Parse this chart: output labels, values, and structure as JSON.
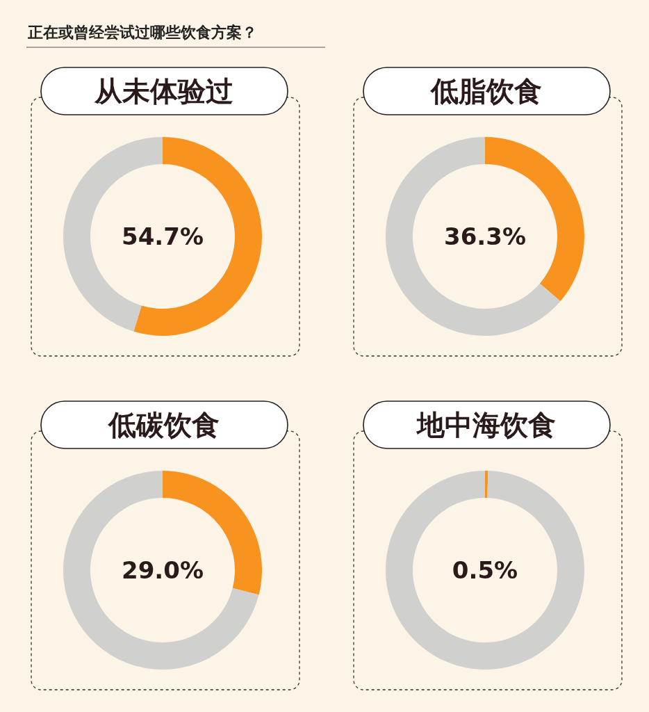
{
  "chart_data": [
    {
      "type": "donut",
      "title": "从未体验过",
      "subtitle": "正在或曾经尝试过哪些饮食方案？",
      "categories": [
        null,
        null
      ],
      "values": [
        54.7,
        45.3
      ],
      "colors": [
        "#f7931e",
        "#d0d0ce"
      ],
      "annotations": [
        "54.7%"
      ]
    },
    {
      "type": "donut",
      "title": "低脂饮食",
      "categories": [
        null,
        null
      ],
      "values": [
        36.3,
        63.7
      ],
      "colors": [
        "#f7931e",
        "#d0d0ce"
      ],
      "annotations": [
        "36.3%"
      ]
    },
    {
      "type": "donut",
      "title": "低碳饮食",
      "categories": [
        null,
        null
      ],
      "values": [
        29.0,
        71.0
      ],
      "colors": [
        "#f7931e",
        "#d0d0ce"
      ],
      "annotations": [
        "29.0%"
      ]
    },
    {
      "type": "donut",
      "title": "地中海饮食",
      "categories": [
        null,
        null
      ],
      "values": [
        0.5,
        99.5
      ],
      "colors": [
        "#f7931e",
        "#d0d0ce"
      ],
      "annotations": [
        "0.5%"
      ]
    }
  ]
}
